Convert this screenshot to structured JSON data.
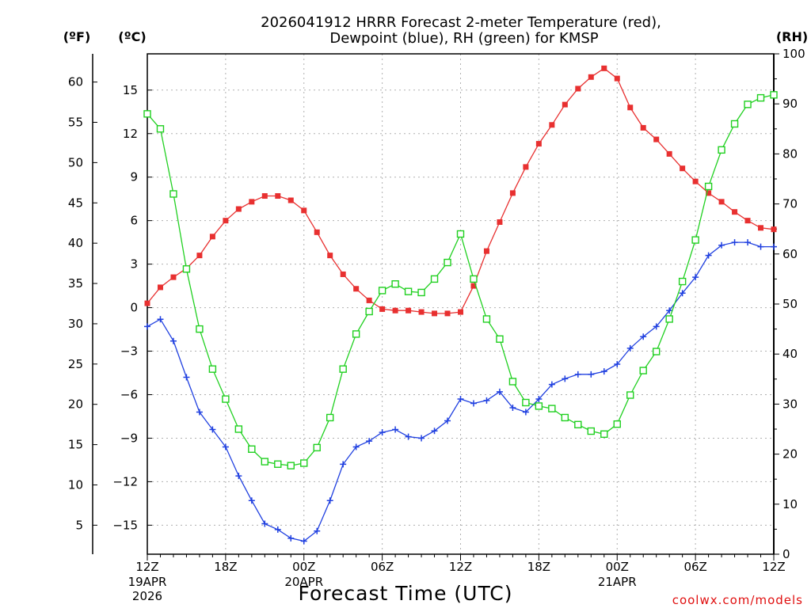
{
  "chart_data": {
    "type": "line",
    "title_line1": "2026041912 HRRR Forecast 2-meter Temperature (red),",
    "title_line2": "Dewpoint (blue), RH (green) for KMSP",
    "xlabel": "Forecast Time (UTC)",
    "credit": "coolwx.com/models",
    "units": {
      "fahrenheit": "(ºF)",
      "celsius": "(ºC)",
      "rh": "(RH)"
    },
    "x_range_hours": [
      0,
      48
    ],
    "x_ticks": [
      {
        "hour": 0,
        "label": "12Z",
        "date": "19APR",
        "year": "2026"
      },
      {
        "hour": 6,
        "label": "18Z",
        "date": "",
        "year": ""
      },
      {
        "hour": 12,
        "label": "00Z",
        "date": "20APR",
        "year": ""
      },
      {
        "hour": 18,
        "label": "06Z",
        "date": "",
        "year": ""
      },
      {
        "hour": 24,
        "label": "12Z",
        "date": "",
        "year": ""
      },
      {
        "hour": 30,
        "label": "18Z",
        "date": "",
        "year": ""
      },
      {
        "hour": 36,
        "label": "00Z",
        "date": "21APR",
        "year": ""
      },
      {
        "hour": 42,
        "label": "06Z",
        "date": "",
        "year": ""
      },
      {
        "hour": 48,
        "label": "12Z",
        "date": "",
        "year": ""
      }
    ],
    "ylim_c": [
      -17,
      17.5
    ],
    "ylim_rh": [
      0,
      100
    ],
    "y_ticks_c": [
      "15",
      "12",
      "9",
      "6",
      "3",
      "0",
      "−3",
      "−6",
      "−9",
      "−12",
      "−15"
    ],
    "y_ticks_f": [
      "60",
      "55",
      "50",
      "45",
      "40",
      "35",
      "30",
      "25",
      "20",
      "15",
      "10",
      "5"
    ],
    "y_ticks_rh": [
      "100",
      "90",
      "80",
      "70",
      "60",
      "50",
      "40",
      "30",
      "20",
      "10",
      "0"
    ],
    "series": [
      {
        "name": "Temperature",
        "unit": "C",
        "color": "#e83030",
        "marker": "filled-square",
        "values": [
          0.3,
          1.4,
          2.1,
          2.7,
          3.6,
          4.9,
          6.0,
          6.8,
          7.3,
          7.7,
          7.7,
          7.4,
          6.7,
          5.2,
          3.6,
          2.3,
          1.3,
          0.5,
          -0.1,
          -0.2,
          -0.2,
          -0.3,
          -0.4,
          -0.4,
          -0.3,
          1.5,
          3.9,
          5.9,
          7.9,
          9.7,
          11.3,
          12.6,
          14.0,
          15.1,
          15.9,
          16.5,
          15.8,
          13.8,
          12.4,
          11.6,
          10.6,
          9.6,
          8.7,
          7.9,
          7.3,
          6.6,
          6.0,
          5.5,
          5.4
        ]
      },
      {
        "name": "Dewpoint",
        "unit": "C",
        "color": "#2040e0",
        "marker": "plus",
        "values": [
          -1.3,
          -0.8,
          -2.3,
          -4.8,
          -7.2,
          -8.4,
          -9.6,
          -11.6,
          -13.3,
          -14.9,
          -15.3,
          -15.9,
          -16.1,
          -15.4,
          -13.3,
          -10.8,
          -9.6,
          -9.2,
          -8.6,
          -8.4,
          -8.9,
          -9.0,
          -8.5,
          -7.8,
          -6.3,
          -6.6,
          -6.4,
          -5.8,
          -6.9,
          -7.2,
          -6.3,
          -5.3,
          -4.9,
          -4.6,
          -4.6,
          -4.4,
          -3.9,
          -2.8,
          -2.0,
          -1.3,
          -0.2,
          1.0,
          2.1,
          3.6,
          4.3,
          4.5,
          4.5,
          4.2,
          4.2
        ]
      },
      {
        "name": "RH",
        "unit": "%",
        "color": "#20d020",
        "marker": "open-square",
        "values": [
          88,
          85,
          72,
          57,
          45,
          37,
          31,
          25,
          21,
          18.5,
          18,
          17.7,
          18.2,
          21.3,
          27.3,
          37,
          44,
          48.5,
          52.7,
          54,
          52.5,
          52.3,
          55,
          58.3,
          64,
          55,
          47,
          43,
          34.5,
          30.3,
          29.6,
          29.1,
          27.3,
          25.9,
          24.6,
          24,
          26,
          31.8,
          36.7,
          40.5,
          47,
          54.5,
          62.8,
          73.5,
          80.8,
          86,
          89.9,
          91.2,
          91.8
        ]
      }
    ]
  }
}
